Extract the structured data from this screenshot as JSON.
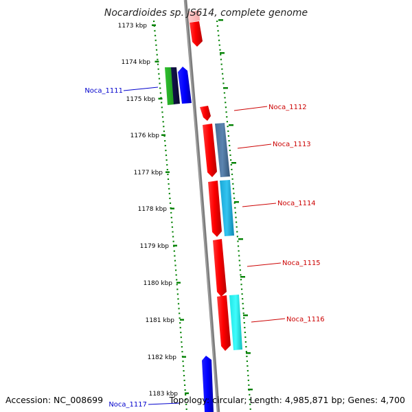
{
  "title": "Nocardioides sp. JS614, complete genome",
  "accession": "Accession: NC_008699",
  "topology": "Topology: circular; Length: 4,985,871 bp; Genes: 4,700",
  "colors": {
    "backbone": "#808080",
    "tick": "#008000",
    "forward_label": "#cc0000",
    "reverse_label": "#0000cc"
  },
  "ticks": [
    {
      "label": "1173 kbp"
    },
    {
      "label": "1174 kbp"
    },
    {
      "label": "1175 kbp"
    },
    {
      "label": "1176 kbp"
    },
    {
      "label": "1177 kbp"
    },
    {
      "label": "1178 kbp"
    },
    {
      "label": "1179 kbp"
    },
    {
      "label": "1180 kbp"
    },
    {
      "label": "1181 kbp"
    },
    {
      "label": "1182 kbp"
    },
    {
      "label": "1183 kbp"
    }
  ],
  "gene_labels": [
    {
      "text": "Noca_1111",
      "strand": "reverse"
    },
    {
      "text": "Noca_1112",
      "strand": "forward"
    },
    {
      "text": "Noca_1113",
      "strand": "forward"
    },
    {
      "text": "Noca_1114",
      "strand": "forward"
    },
    {
      "text": "Noca_1115",
      "strand": "forward"
    },
    {
      "text": "Noca_1116",
      "strand": "forward"
    },
    {
      "text": "Noca_1117",
      "strand": "reverse"
    }
  ]
}
